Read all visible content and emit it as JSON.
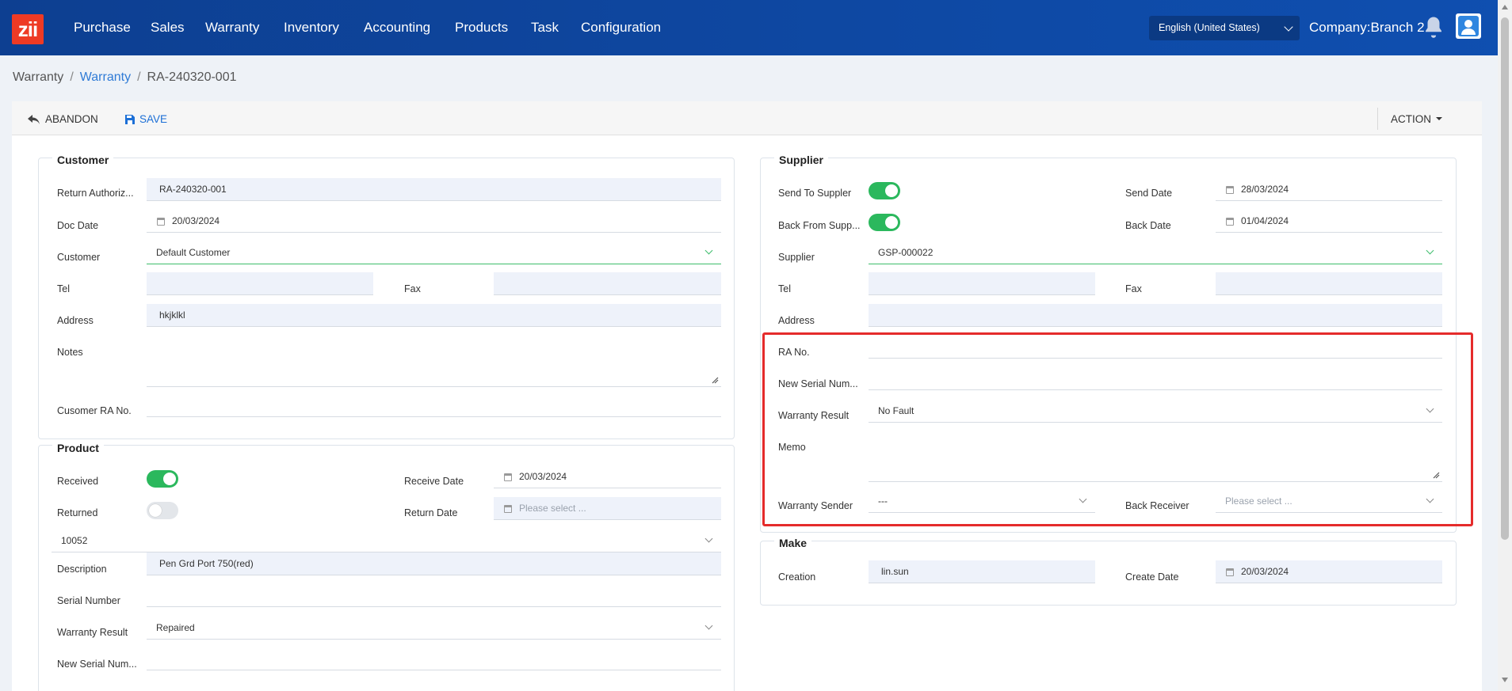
{
  "navbar": {
    "logo": "zii",
    "menu": [
      "Purchase",
      "Sales",
      "Warranty",
      "Inventory",
      "Accounting",
      "Products",
      "Task",
      "Configuration"
    ],
    "language": "English (United States)",
    "company": "Company:Branch 2"
  },
  "breadcrumb": {
    "root": "Warranty",
    "link": "Warranty",
    "current": "RA-240320-001"
  },
  "toolbar": {
    "abandon": "ABANDON",
    "save": "SAVE",
    "action": "ACTION"
  },
  "customer": {
    "legend": "Customer",
    "ra_label": "Return Authoriz...",
    "ra_value": "RA-240320-001",
    "doc_date_label": "Doc Date",
    "doc_date_value": "20/03/2024",
    "customer_label": "Customer",
    "customer_value": "Default Customer",
    "tel_label": "Tel",
    "tel_value": "",
    "fax_label": "Fax",
    "fax_value": "",
    "address_label": "Address",
    "address_value": "hkjklkl",
    "notes_label": "Notes",
    "notes_value": "",
    "cust_ra_label": "Cusomer RA No.",
    "cust_ra_value": ""
  },
  "product": {
    "legend": "Product",
    "received_label": "Received",
    "receive_date_label": "Receive Date",
    "receive_date_value": "20/03/2024",
    "returned_label": "Returned",
    "return_date_label": "Return Date",
    "return_date_placeholder": "Please select ...",
    "code_value": "10052",
    "description_label": "Description",
    "description_value": "Pen Grd Port 750(red)",
    "serial_label": "Serial Number",
    "serial_value": "",
    "warranty_result_label": "Warranty Result",
    "warranty_result_value": "Repaired",
    "new_serial_label": "New Serial Num...",
    "new_serial_value": ""
  },
  "supplier": {
    "legend": "Supplier",
    "send_label": "Send To Suppler",
    "send_date_label": "Send Date",
    "send_date_value": "28/03/2024",
    "back_label": "Back From Supp...",
    "back_date_label": "Back Date",
    "back_date_value": "01/04/2024",
    "supplier_label": "Supplier",
    "supplier_value": "GSP-000022",
    "tel_label": "Tel",
    "tel_value": "",
    "fax_label": "Fax",
    "fax_value": "",
    "address_label": "Address",
    "address_value": "",
    "ra_no_label": "RA No.",
    "ra_no_value": "",
    "new_serial_label": "New Serial Num...",
    "new_serial_value": "",
    "warranty_result_label": "Warranty Result",
    "warranty_result_value": "No Fault",
    "memo_label": "Memo",
    "memo_value": "",
    "sender_label": "Warranty Sender",
    "sender_value": "---",
    "receiver_label": "Back Receiver",
    "receiver_placeholder": "Please select ..."
  },
  "make": {
    "legend": "Make",
    "creation_label": "Creation",
    "creation_value": "lin.sun",
    "create_date_label": "Create Date",
    "create_date_value": "20/03/2024"
  },
  "colors": {
    "nav": "#0f4fb0",
    "toggle_on": "#2bb85d",
    "link": "#2f7bd6",
    "highlight": "#e52b2b",
    "logo": "#ee3a24"
  }
}
